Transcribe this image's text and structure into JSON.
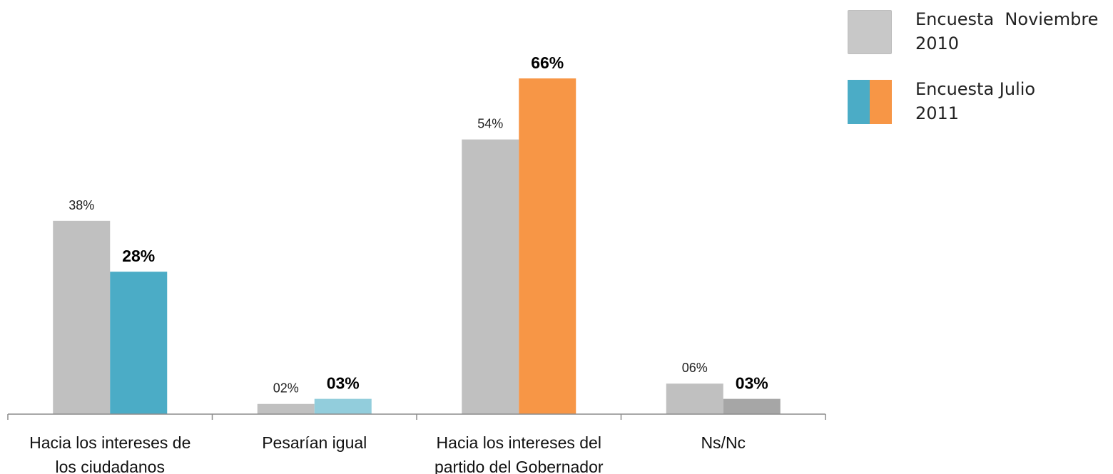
{
  "chart_data": {
    "type": "bar",
    "categories": [
      [
        "Hacia los intereses de",
        "los ciudadanos"
      ],
      [
        "Pesarían igual"
      ],
      [
        "Hacia los intereses del",
        "partido del Gobernador"
      ],
      [
        "Ns/Nc"
      ]
    ],
    "series": [
      {
        "name": "Encuesta Noviembre 2010",
        "values": [
          38,
          2,
          54,
          6
        ],
        "labels": [
          "38%",
          "02%",
          "54%",
          "06%"
        ],
        "colors": [
          "#c0c0c0",
          "#c0c0c0",
          "#c0c0c0",
          "#c0c0c0"
        ]
      },
      {
        "name": "Encuesta Julio 2011",
        "values": [
          28,
          3,
          66,
          3
        ],
        "labels": [
          "28%",
          "03%",
          "66%",
          "03%"
        ],
        "colors": [
          "#4bacc6",
          "#92cddc",
          "#f79646",
          "#a6a6a6"
        ]
      }
    ],
    "ylim": [
      0,
      66
    ],
    "grid": false,
    "legend_position": "top-right"
  },
  "legend": {
    "items": [
      {
        "line1": "Encuesta  Noviembre",
        "line2": "2010",
        "colors": [
          "#c8c8c8"
        ]
      },
      {
        "line1": "Encuesta Julio",
        "line2": "2011",
        "colors": [
          "#4bacc6",
          "#f79646"
        ]
      }
    ]
  }
}
